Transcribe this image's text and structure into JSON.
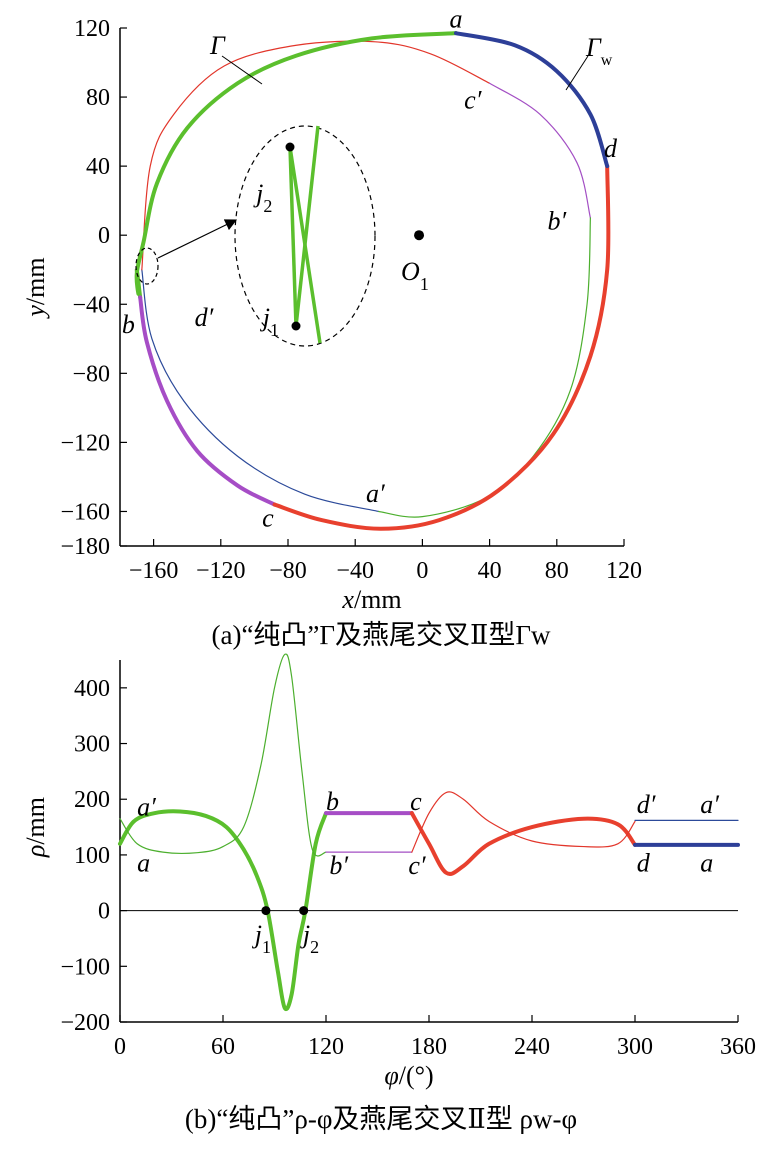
{
  "chart_data": [
    {
      "type": "line",
      "caption": "(a)“纯凸”Γ及燕尾交叉Ⅱ型Γw",
      "xlabel": "x/mm",
      "ylabel": "y/mm",
      "xlim": [
        -180,
        120
      ],
      "ylim": [
        -180,
        120
      ],
      "xticks": [
        -160,
        -120,
        -80,
        -40,
        0,
        40,
        80,
        120
      ],
      "yticks": [
        -180,
        -160,
        -120,
        -80,
        -40,
        0,
        40,
        80,
        120
      ],
      "xtick_labels": [
        "−160",
        "−120",
        "−80",
        "−40",
        "0",
        "40",
        "80",
        "120"
      ],
      "ytick_labels": [
        "−180",
        "−160",
        "−120",
        "−80",
        "−40",
        "0",
        "40",
        "80",
        "120"
      ],
      "center_label": "O1",
      "center": [
        -2,
        0
      ],
      "curve_labels": [
        {
          "name": "Γ",
          "at": [
            -115,
            103
          ]
        },
        {
          "name": "Γw",
          "at": [
            87,
            97
          ]
        }
      ],
      "point_labels": [
        {
          "name": "a",
          "at": [
            20,
            125
          ]
        },
        {
          "name": "c′",
          "at": [
            30,
            78
          ]
        },
        {
          "name": "d",
          "at": [
            112,
            50
          ]
        },
        {
          "name": "b′",
          "at": [
            80,
            8
          ]
        },
        {
          "name": "b",
          "at": [
            -175,
            -52
          ]
        },
        {
          "name": "d′",
          "at": [
            -130,
            -48
          ]
        },
        {
          "name": "a′",
          "at": [
            -28,
            -150
          ]
        },
        {
          "name": "c",
          "at": [
            -92,
            -164
          ]
        },
        {
          "name": "j2",
          "at": [
            -99,
            24
          ]
        },
        {
          "name": "j1",
          "at": [
            -95,
            -48
          ]
        }
      ],
      "series": [
        {
          "role": "Γ-arc-a′d′",
          "color": "#2c4a9a",
          "points": [
            [
              -26,
              -160
            ],
            [
              -70,
              -150
            ],
            [
              -110,
              -128
            ],
            [
              -142,
              -96
            ],
            [
              -161,
              -60
            ],
            [
              -167,
              -20
            ]
          ]
        },
        {
          "role": "Γ-arc-d′c′",
          "color": "#e2362b",
          "points": [
            [
              -167,
              -20
            ],
            [
              -162,
              40
            ],
            [
              -148,
              70
            ],
            [
              -118,
              98
            ],
            [
              -75,
              110
            ],
            [
              -28,
              112
            ],
            [
              5,
              105
            ],
            [
              40,
              88
            ]
          ]
        },
        {
          "role": "Γ-arc-c′b′",
          "color": "#a34fc4",
          "points": [
            [
              40,
              88
            ],
            [
              70,
              70
            ],
            [
              92,
              42
            ],
            [
              100,
              10
            ]
          ]
        },
        {
          "role": "Γ-arc-b′a′",
          "color": "#4caf2e",
          "points": [
            [
              100,
              10
            ],
            [
              98,
              -40
            ],
            [
              88,
              -90
            ],
            [
              66,
              -128
            ],
            [
              38,
              -152
            ],
            [
              0,
              -163
            ],
            [
              -26,
              -160
            ]
          ]
        },
        {
          "role": "Γw-arc-ab",
          "color": "#5bbf2d",
          "points": [
            [
              20,
              117
            ],
            [
              -30,
              114
            ],
            [
              -75,
              104
            ],
            [
              -110,
              88
            ],
            [
              -140,
              62
            ],
            [
              -158,
              30
            ],
            [
              -166,
              -4
            ],
            [
              -170,
              -22
            ],
            [
              -169,
              -34
            ],
            [
              -170,
              -20
            ],
            [
              -168,
              -36
            ]
          ]
        },
        {
          "role": "Γw-arc-bc",
          "color": "#a64dc6",
          "points": [
            [
              -168,
              -36
            ],
            [
              -164,
              -62
            ],
            [
              -152,
              -96
            ],
            [
              -134,
              -125
            ],
            [
              -110,
              -145
            ],
            [
              -88,
              -156
            ]
          ]
        },
        {
          "role": "Γw-arc-cd",
          "color": "#e8402e",
          "points": [
            [
              -88,
              -156
            ],
            [
              -60,
              -165
            ],
            [
              -25,
              -170
            ],
            [
              10,
              -165
            ],
            [
              45,
              -148
            ],
            [
              78,
              -115
            ],
            [
              100,
              -70
            ],
            [
              110,
              -20
            ],
            [
              110,
              40
            ]
          ]
        },
        {
          "role": "Γw-arc-da",
          "color": "#2d3f98",
          "points": [
            [
              110,
              40
            ],
            [
              100,
              70
            ],
            [
              80,
              95
            ],
            [
              55,
              110
            ],
            [
              20,
              117
            ]
          ]
        }
      ],
      "inset_points": [
        {
          "name": "j2",
          "at": [
            -82,
            46
          ]
        },
        {
          "name": "j1",
          "at": [
            -80,
            -64
          ]
        }
      ]
    },
    {
      "type": "line",
      "caption": "(b)“纯凸”ρ-φ及燕尾交叉Ⅱ型 ρw-φ",
      "xlabel": "φ/(°)",
      "ylabel": "ρ/mm",
      "xlim": [
        0,
        360
      ],
      "ylim": [
        -200,
        450
      ],
      "xticks": [
        0,
        60,
        120,
        180,
        240,
        300,
        360
      ],
      "yticks": [
        -200,
        -100,
        0,
        100,
        200,
        300,
        400
      ],
      "xtick_labels": [
        "0",
        "60",
        "120",
        "180",
        "240",
        "300",
        "360"
      ],
      "ytick_labels": [
        "−200",
        "−100",
        "0",
        "100",
        "200",
        "300",
        "400"
      ],
      "point_labels": [
        {
          "name": "a′",
          "at": [
            10,
            185
          ]
        },
        {
          "name": "a",
          "at": [
            10,
            85
          ]
        },
        {
          "name": "b",
          "at": [
            120,
            195
          ]
        },
        {
          "name": "b′",
          "at": [
            122,
            80
          ]
        },
        {
          "name": "c",
          "at": [
            169,
            195
          ]
        },
        {
          "name": "c′",
          "at": [
            168,
            80
          ]
        },
        {
          "name": "d′",
          "at": [
            301,
            190
          ]
        },
        {
          "name": "d",
          "at": [
            301,
            85
          ]
        },
        {
          "name": "a′",
          "at": [
            338,
            190
          ]
        },
        {
          "name": "a",
          "at": [
            338,
            85
          ]
        },
        {
          "name": "j1",
          "at": [
            82,
            -40
          ]
        },
        {
          "name": "j2",
          "at": [
            110,
            -40
          ]
        }
      ],
      "markers": [
        [
          85,
          0
        ],
        [
          107,
          0
        ]
      ],
      "series": [
        {
          "role": "ρw",
          "color_thick": true,
          "segments": [
            {
              "color": "#5bbf2d",
              "x": [
                0,
                8,
                20,
                35,
                50,
                62,
                72,
                80,
                86,
                92,
                96,
                100,
                104,
                108,
                114,
                120
              ],
              "y": [
                120,
                160,
                175,
                178,
                170,
                150,
                110,
                60,
                0,
                -110,
                -175,
                -150,
                -60,
                0,
                120,
                175
              ]
            },
            {
              "color": "#a64dc6",
              "x": [
                120,
                170
              ],
              "y": [
                175,
                175
              ]
            },
            {
              "color": "#e8402e",
              "x": [
                170,
                180,
                190,
                200,
                215,
                240,
                270,
                290,
                300
              ],
              "y": [
                175,
                120,
                68,
                80,
                120,
                150,
                165,
                155,
                118
              ]
            },
            {
              "color": "#2d3f98",
              "x": [
                300,
                360
              ],
              "y": [
                118,
                118
              ]
            }
          ]
        },
        {
          "role": "ρ",
          "thin": true,
          "segments": [
            {
              "color": "#4caf2e",
              "x": [
                0,
                10,
                25,
                45,
                60,
                72,
                82,
                90,
                96,
                100,
                106,
                112,
                120
              ],
              "y": [
                165,
                120,
                105,
                104,
                115,
                150,
                260,
                400,
                460,
                420,
                250,
                110,
                105
              ]
            },
            {
              "color": "#a34fc4",
              "x": [
                120,
                170
              ],
              "y": [
                105,
                105
              ]
            },
            {
              "color": "#e2362b",
              "x": [
                170,
                180,
                190,
                200,
                215,
                240,
                270,
                290,
                300
              ],
              "y": [
                105,
                175,
                212,
                200,
                160,
                125,
                115,
                120,
                160
              ]
            },
            {
              "color": "#2c4a9a",
              "x": [
                300,
                360
              ],
              "y": [
                162,
                162
              ]
            }
          ]
        }
      ]
    }
  ]
}
